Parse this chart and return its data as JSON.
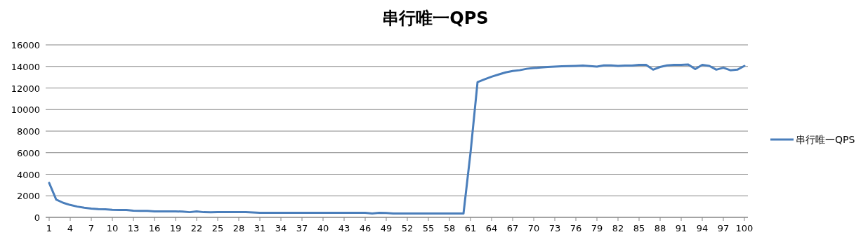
{
  "chart_data": {
    "type": "line",
    "title": "串行唯一QPS",
    "x": [
      1,
      2,
      3,
      4,
      5,
      6,
      7,
      8,
      9,
      10,
      11,
      12,
      13,
      14,
      15,
      16,
      17,
      18,
      19,
      20,
      21,
      22,
      23,
      24,
      25,
      26,
      27,
      28,
      29,
      30,
      31,
      32,
      33,
      34,
      35,
      36,
      37,
      38,
      39,
      40,
      41,
      42,
      43,
      44,
      45,
      46,
      47,
      48,
      49,
      50,
      51,
      52,
      53,
      54,
      55,
      56,
      57,
      58,
      59,
      60,
      61,
      62,
      63,
      64,
      65,
      66,
      67,
      68,
      69,
      70,
      71,
      72,
      73,
      74,
      75,
      76,
      77,
      78,
      79,
      80,
      81,
      82,
      83,
      84,
      85,
      86,
      87,
      88,
      89,
      90,
      91,
      92,
      93,
      94,
      95,
      96,
      97,
      98,
      99,
      100
    ],
    "series": [
      {
        "name": "串行唯一QPS",
        "color": "#4a7ebb",
        "values": [
          3200,
          1650,
          1350,
          1150,
          1000,
          900,
          820,
          760,
          740,
          700,
          680,
          680,
          620,
          600,
          600,
          560,
          550,
          550,
          550,
          540,
          480,
          550,
          480,
          470,
          480,
          480,
          480,
          480,
          480,
          450,
          420,
          420,
          420,
          420,
          420,
          420,
          420,
          420,
          420,
          420,
          420,
          420,
          420,
          420,
          420,
          420,
          360,
          420,
          410,
          360,
          360,
          360,
          360,
          360,
          360,
          360,
          360,
          360,
          360,
          360,
          6000,
          12550,
          12800,
          13050,
          13250,
          13450,
          13580,
          13650,
          13780,
          13850,
          13900,
          13950,
          13980,
          14020,
          14030,
          14050,
          14080,
          14040,
          13980,
          14100,
          14100,
          14050,
          14080,
          14080,
          14150,
          14150,
          13700,
          13950,
          14100,
          14150,
          14150,
          14180,
          13750,
          14150,
          14050,
          13700,
          13880,
          13650,
          13700,
          14050
        ]
      }
    ],
    "xlim": [
      0.5,
      100.5
    ],
    "xticks": [
      1,
      4,
      7,
      10,
      13,
      16,
      19,
      22,
      25,
      28,
      31,
      34,
      37,
      40,
      43,
      46,
      49,
      52,
      55,
      58,
      61,
      64,
      67,
      70,
      73,
      76,
      79,
      82,
      85,
      88,
      91,
      94,
      97,
      100
    ],
    "ylim": [
      0,
      16000
    ],
    "yticks": [
      0,
      2000,
      4000,
      6000,
      8000,
      10000,
      12000,
      14000,
      16000
    ],
    "grid": "y",
    "legend": "right",
    "marker": "none",
    "line_style": "solid"
  }
}
